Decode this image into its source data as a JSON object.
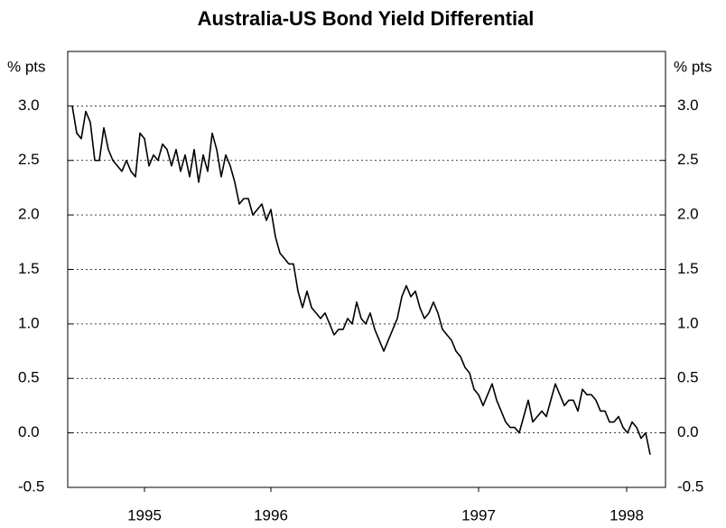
{
  "chart_data": {
    "type": "line",
    "title": "Australia-US Bond Yield Differential",
    "y_label": "% pts",
    "xlim": [
      1994.75,
      1998.06
    ],
    "xticks": [
      {
        "value": 1995.175,
        "label": "1995"
      },
      {
        "value": 1995.875,
        "label": "1996"
      },
      {
        "value": 1997.025,
        "label": "1997"
      },
      {
        "value": 1997.845,
        "label": "1998"
      }
    ],
    "ylim": [
      -0.5,
      3.5
    ],
    "yticks": [
      -0.5,
      {
        "value": 0,
        "label": "0.0"
      },
      0.5,
      {
        "value": 1,
        "label": "1.0"
      },
      1.5,
      {
        "value": 2,
        "label": "2.0"
      },
      2.5,
      {
        "value": 3,
        "label": "3.0"
      }
    ],
    "grid": true,
    "series": [
      {
        "color": "#000000",
        "x": [
          1994.775,
          1994.8,
          1994.825,
          1994.85,
          1994.875,
          1994.9,
          1994.925,
          1994.95,
          1994.975,
          1995,
          1995.025,
          1995.05,
          1995.075,
          1995.1,
          1995.125,
          1995.15,
          1995.175,
          1995.2,
          1995.225,
          1995.25,
          1995.275,
          1995.3,
          1995.325,
          1995.35,
          1995.375,
          1995.4,
          1995.425,
          1995.45,
          1995.475,
          1995.5,
          1995.525,
          1995.55,
          1995.575,
          1995.6,
          1995.625,
          1995.65,
          1995.675,
          1995.7,
          1995.725,
          1995.75,
          1995.775,
          1995.8,
          1995.825,
          1995.85,
          1995.875,
          1995.9,
          1995.925,
          1995.95,
          1995.975,
          1996,
          1996.025,
          1996.05,
          1996.075,
          1996.1,
          1996.125,
          1996.15,
          1996.175,
          1996.2,
          1996.225,
          1996.25,
          1996.275,
          1996.3,
          1996.325,
          1996.35,
          1996.375,
          1996.4,
          1996.425,
          1996.45,
          1996.475,
          1996.5,
          1996.525,
          1996.55,
          1996.575,
          1996.6,
          1996.625,
          1996.65,
          1996.675,
          1996.7,
          1996.725,
          1996.75,
          1996.775,
          1996.8,
          1996.825,
          1996.85,
          1996.875,
          1996.9,
          1996.925,
          1996.95,
          1996.975,
          1997,
          1997.025,
          1997.05,
          1997.075,
          1997.1,
          1997.125,
          1997.15,
          1997.175,
          1997.2,
          1997.225,
          1997.25,
          1997.275,
          1997.3,
          1997.325,
          1997.35,
          1997.375,
          1997.4,
          1997.425,
          1997.45,
          1997.475,
          1997.5,
          1997.525,
          1997.55,
          1997.575,
          1997.6,
          1997.625,
          1997.65,
          1997.675,
          1997.7,
          1997.725,
          1997.75,
          1997.775,
          1997.8,
          1997.825,
          1997.85,
          1997.875,
          1997.9,
          1997.925,
          1997.95,
          1997.975
        ],
        "values": [
          3.0,
          2.75,
          2.7,
          2.95,
          2.85,
          2.5,
          2.5,
          2.8,
          2.6,
          2.5,
          2.45,
          2.4,
          2.5,
          2.4,
          2.35,
          2.75,
          2.7,
          2.45,
          2.55,
          2.5,
          2.65,
          2.6,
          2.45,
          2.6,
          2.4,
          2.55,
          2.35,
          2.6,
          2.3,
          2.55,
          2.4,
          2.75,
          2.6,
          2.35,
          2.55,
          2.45,
          2.3,
          2.1,
          2.15,
          2.15,
          2.0,
          2.05,
          2.1,
          1.95,
          2.05,
          1.8,
          1.65,
          1.6,
          1.55,
          1.55,
          1.3,
          1.15,
          1.3,
          1.15,
          1.1,
          1.05,
          1.1,
          1.0,
          0.9,
          0.95,
          0.95,
          1.05,
          1.0,
          1.2,
          1.05,
          1.0,
          1.1,
          0.95,
          0.85,
          0.75,
          0.85,
          0.95,
          1.05,
          1.25,
          1.35,
          1.25,
          1.3,
          1.15,
          1.05,
          1.1,
          1.2,
          1.1,
          0.95,
          0.9,
          0.85,
          0.75,
          0.7,
          0.6,
          0.55,
          0.4,
          0.35,
          0.25,
          0.35,
          0.45,
          0.3,
          0.2,
          0.1,
          0.05,
          0.05,
          0.0,
          0.15,
          0.3,
          0.1,
          0.15,
          0.2,
          0.15,
          0.3,
          0.45,
          0.35,
          0.25,
          0.3,
          0.3,
          0.2,
          0.4,
          0.35,
          0.35,
          0.3,
          0.2,
          0.2,
          0.1,
          0.1,
          0.15,
          0.05,
          0.0,
          0.1,
          0.05,
          -0.05,
          0.0,
          -0.2
        ]
      }
    ]
  }
}
